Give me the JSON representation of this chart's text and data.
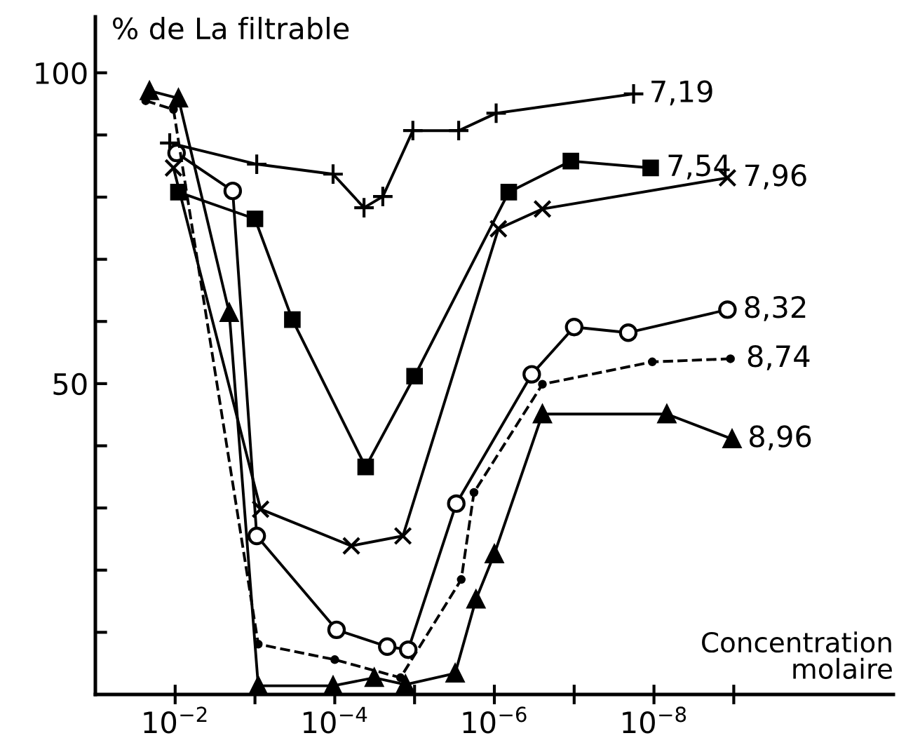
{
  "chart_data": {
    "type": "line",
    "ylabel": "% de La filtrable",
    "xlabel": "Concentration\nmolaire",
    "log": "x",
    "xlim": [
      0.1,
      1e-11
    ],
    "xticks": [
      {
        "value": 0.01,
        "label": "10$^{−2}$"
      },
      {
        "value": 0.001,
        "label": null
      },
      {
        "value": 0.0001,
        "label": "10$^{−4}$"
      },
      {
        "value": 1e-05,
        "label": null
      },
      {
        "value": 1e-06,
        "label": "10$^{−6}$"
      },
      {
        "value": 1e-07,
        "label": null
      },
      {
        "value": 1e-08,
        "label": "10$^{−8}$"
      },
      {
        "value": 1e-09,
        "label": null
      }
    ],
    "ylim": [
      0,
      109
    ],
    "yticks": [
      {
        "value": 10,
        "label": null
      },
      {
        "value": 20,
        "label": null
      },
      {
        "value": 30,
        "label": null
      },
      {
        "value": 40,
        "label": null
      },
      50,
      {
        "value": 60,
        "label": null
      },
      {
        "value": 70,
        "label": null
      },
      {
        "value": 80,
        "label": null
      },
      {
        "value": 90,
        "label": null
      },
      100
    ],
    "grid": false,
    "legend": false,
    "series": [
      {
        "name": "7,19",
        "color": "#000000",
        "marker": "plus",
        "line_style": "solid",
        "x": [
          0.0117,
          0.00095,
          0.000105,
          4.3e-05,
          2.5e-05,
          1.05e-05,
          2.8e-06,
          9.5e-07,
          1.8e-08
        ],
        "values": [
          88.7,
          85.3,
          83.7,
          78.3,
          80.1,
          90.7,
          90.7,
          93.5,
          96.6
        ]
      },
      {
        "name": "7,54",
        "color": "#000000",
        "marker": "square",
        "line_style": "solid",
        "x": [
          0.0091,
          0.001,
          0.00034,
          4.1e-05,
          1e-05,
          6.6e-07,
          1.1e-07,
          1.1e-08
        ],
        "values": [
          80.8,
          76.5,
          60.3,
          36.6,
          51.2,
          80.8,
          85.8,
          84.7
        ]
      },
      {
        "name": "7,96",
        "color": "#000000",
        "marker": "cross",
        "line_style": "solid",
        "x": [
          0.0105,
          0.00085,
          6.2e-05,
          1.4e-05,
          8.9e-07,
          2.5e-07,
          1.2e-09
        ],
        "values": [
          84.7,
          29.8,
          23.9,
          25.5,
          74.9,
          78.1,
          83.1
        ]
      },
      {
        "name": "8,32",
        "color": "#000000",
        "marker": "circle",
        "line_style": "solid",
        "x": [
          0.0096,
          0.0019,
          0.00095,
          9.5e-05,
          2.2e-05,
          1.2e-05,
          3e-06,
          3.4e-07,
          1e-07,
          2.1e-08,
          1.2e-09
        ],
        "values": [
          87.1,
          81.0,
          25.5,
          10.4,
          7.7,
          7.2,
          30.7,
          51.5,
          59.1,
          58.2,
          61.9
        ]
      },
      {
        "name": "8,74",
        "color": "#000000",
        "marker": "point",
        "line_style": "dashed",
        "x": [
          0.0234,
          0.0105,
          0.00091,
          0.0001,
          1.5e-05,
          2.6e-06,
          1.8e-06,
          2.5e-07,
          1.05e-08,
          1.1e-09
        ],
        "values": [
          95.5,
          94.1,
          8.1,
          5.6,
          2.7,
          18.5,
          32.5,
          49.9,
          53.5,
          54.0
        ]
      },
      {
        "name": "8,96",
        "color": "#000000",
        "marker": "triangle",
        "line_style": "solid",
        "x": [
          0.021,
          0.0091,
          0.0021,
          0.00091,
          0.000105,
          3.2e-05,
          1.3e-05,
          3.1e-06,
          1.7e-06,
          1e-06,
          2.5e-07,
          6.9e-09,
          1.05e-09
        ],
        "values": [
          97.1,
          95.9,
          61.4,
          1.4,
          1.4,
          2.7,
          1.6,
          3.4,
          15.3,
          22.6,
          45.1,
          45.1,
          41.1
        ]
      }
    ]
  }
}
